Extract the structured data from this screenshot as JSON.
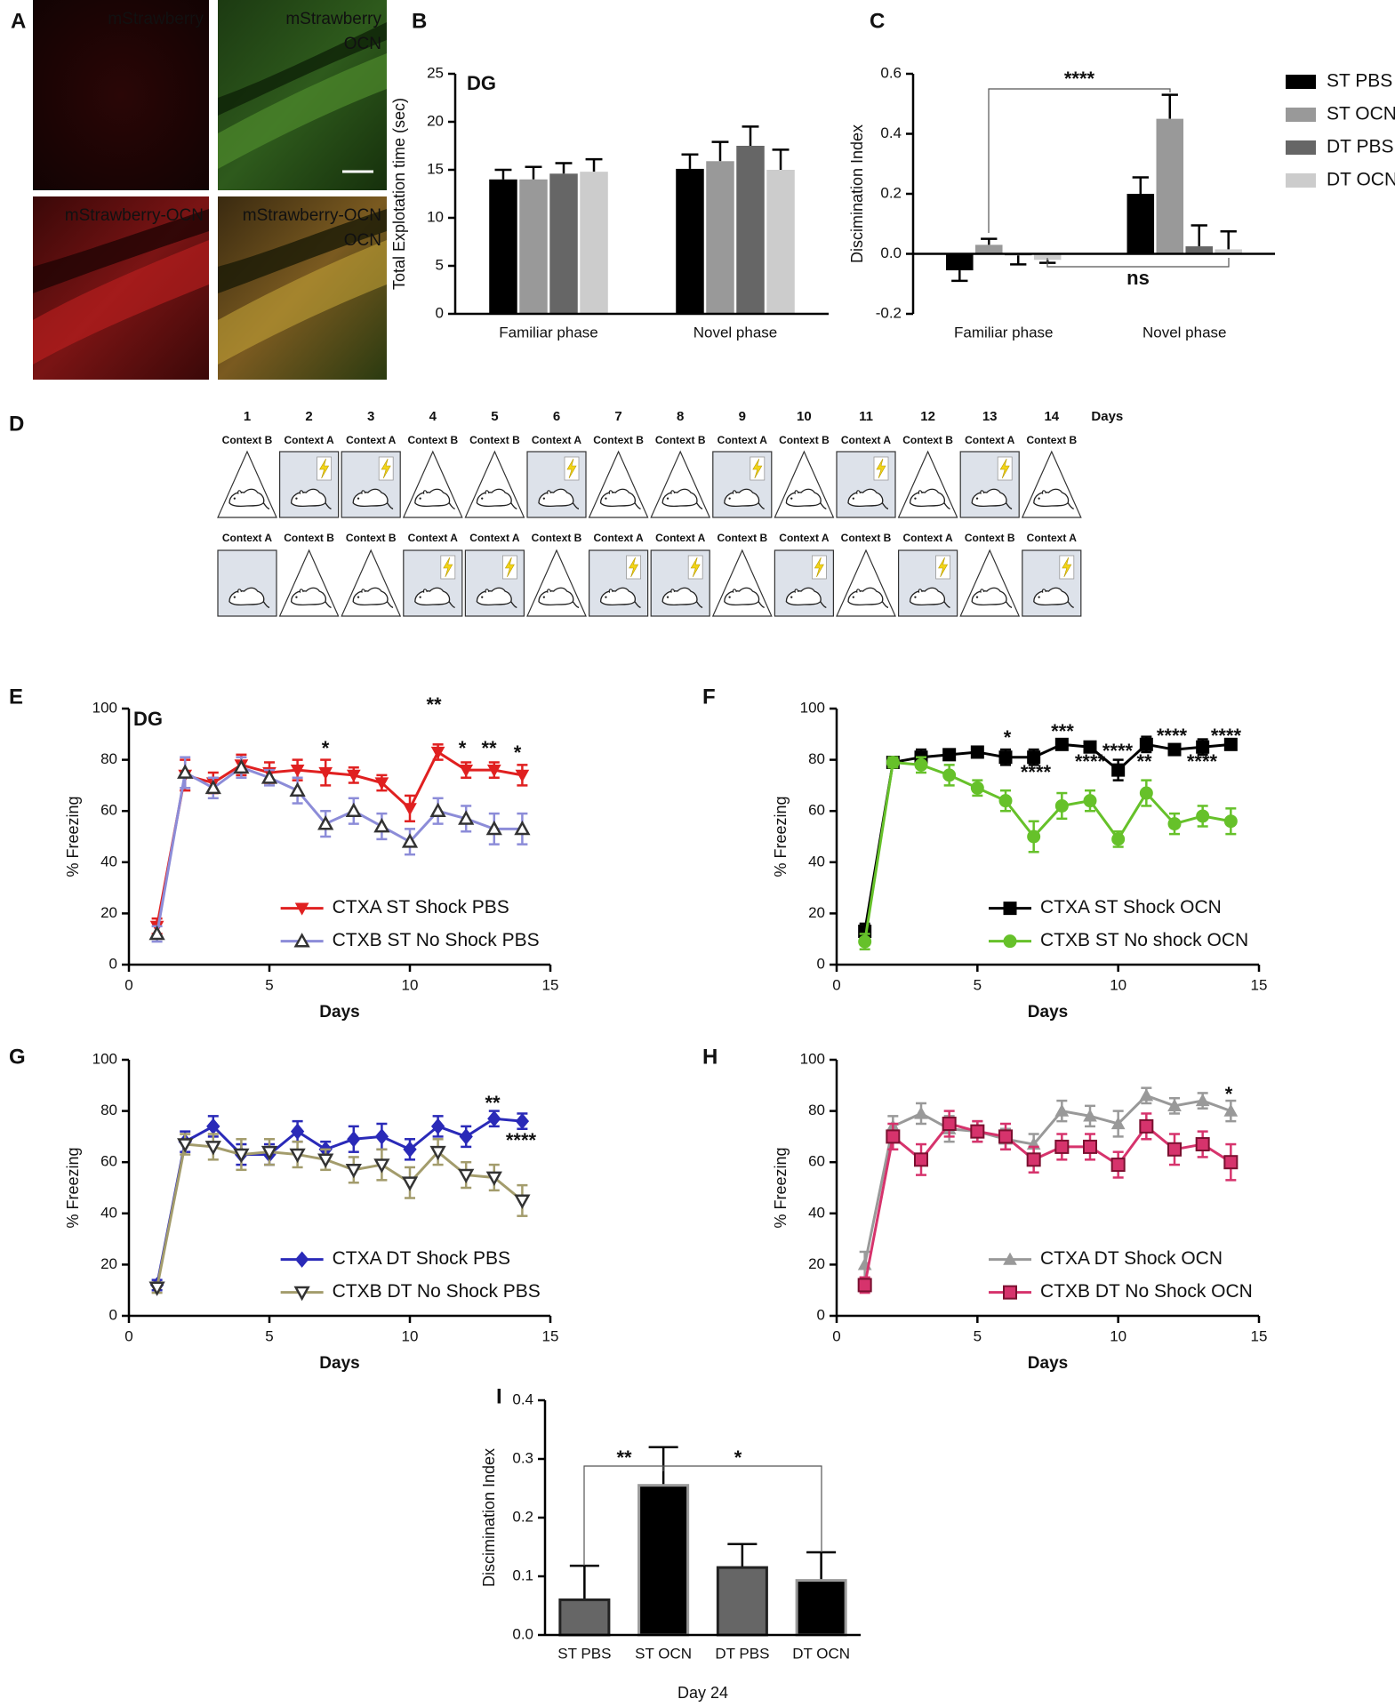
{
  "panel_labels": [
    "A",
    "B",
    "C",
    "D",
    "E",
    "F",
    "G",
    "H",
    "I"
  ],
  "images": [
    {
      "texts": [
        "mStrawberry"
      ]
    },
    {
      "texts": [
        "mStrawberry",
        "OCN"
      ]
    },
    {
      "texts": [
        "mStrawberry-OCN"
      ]
    },
    {
      "texts": [
        "mStrawberry-OCN",
        "OCN"
      ]
    }
  ],
  "protocol": {
    "days": [
      1,
      2,
      3,
      4,
      5,
      6,
      7,
      8,
      9,
      10,
      11,
      12,
      13,
      14
    ],
    "days_label": "Days",
    "rows": [
      [
        {
          "context": "Context B",
          "shock": false
        },
        {
          "context": "Context A",
          "shock": true
        },
        {
          "context": "Context A",
          "shock": true
        },
        {
          "context": "Context B",
          "shock": false
        },
        {
          "context": "Context B",
          "shock": false
        },
        {
          "context": "Context A",
          "shock": true
        },
        {
          "context": "Context B",
          "shock": false
        },
        {
          "context": "Context B",
          "shock": false
        },
        {
          "context": "Context A",
          "shock": true
        },
        {
          "context": "Context B",
          "shock": false
        },
        {
          "context": "Context A",
          "shock": true
        },
        {
          "context": "Context B",
          "shock": false
        },
        {
          "context": "Context A",
          "shock": true
        },
        {
          "context": "Context B",
          "shock": false
        }
      ],
      [
        {
          "context": "Context A",
          "shock": false
        },
        {
          "context": "Context B",
          "shock": false
        },
        {
          "context": "Context B",
          "shock": false
        },
        {
          "context": "Context A",
          "shock": true
        },
        {
          "context": "Context A",
          "shock": true
        },
        {
          "context": "Context B",
          "shock": false
        },
        {
          "context": "Context A",
          "shock": true
        },
        {
          "context": "Context A",
          "shock": true
        },
        {
          "context": "Context B",
          "shock": false
        },
        {
          "context": "Context A",
          "shock": true
        },
        {
          "context": "Context B",
          "shock": false
        },
        {
          "context": "Context A",
          "shock": true
        },
        {
          "context": "Context B",
          "shock": false
        },
        {
          "context": "Context A",
          "shock": true
        }
      ]
    ]
  },
  "chart_data": [
    {
      "type": "bar",
      "annotations": [
        "DG"
      ],
      "ylabel": "Total Explotation time (sec)",
      "categories": [
        "Familiar phase",
        "Novel phase"
      ],
      "series": [
        {
          "color": "#000000",
          "values": [
            14,
            15.1
          ],
          "error": [
            1,
            1.5
          ]
        },
        {
          "color": "#999999",
          "values": [
            14,
            15.9
          ],
          "error": [
            1.3,
            2
          ]
        },
        {
          "color": "#666666",
          "values": [
            14.6,
            17.5
          ],
          "error": [
            1.1,
            2
          ]
        },
        {
          "color": "#cccccc",
          "values": [
            14.8,
            15
          ],
          "error": [
            1.3,
            2.1
          ]
        }
      ],
      "ylim": [
        0,
        25
      ],
      "yticks": [
        0,
        5,
        10,
        15,
        20,
        25
      ]
    },
    {
      "type": "bar",
      "annotations": [
        "****",
        "ns"
      ],
      "ylabel": "Discimination Index",
      "categories": [
        "Familiar phase",
        "Novel phase"
      ],
      "series": [
        {
          "name": "ST PBS",
          "color": "#000000",
          "values": [
            -0.055,
            0.2
          ],
          "error": [
            0.035,
            0.055
          ]
        },
        {
          "name": "ST OCN",
          "color": "#999999",
          "values": [
            0.03,
            0.45
          ],
          "error": [
            0.02,
            0.08
          ]
        },
        {
          "name": "DT PBS",
          "color": "#666666",
          "values": [
            -0.005,
            0.025
          ],
          "error": [
            0.03,
            0.07
          ]
        },
        {
          "name": "DT OCN",
          "color": "#cccccc",
          "values": [
            -0.02,
            0.015
          ],
          "error": [
            0.01,
            0.06
          ]
        }
      ],
      "ylim": [
        -0.2,
        0.6
      ],
      "yticks": [
        -0.2,
        {
          "value": 0,
          "label": "0.0"
        },
        0.2,
        0.4,
        0.6
      ],
      "legend": "right"
    },
    {
      "type": "line",
      "annotations": [
        "DG",
        "*",
        "**",
        "*",
        "**",
        "*"
      ],
      "xlabel": "Days",
      "ylabel": "% Freezing",
      "x": [
        1,
        2,
        3,
        4,
        5,
        6,
        7,
        8,
        9,
        10,
        11,
        12,
        13,
        14
      ],
      "series": [
        {
          "name": "CTXA ST Shock PBS",
          "color": "#e02020",
          "marker": "triangle-down",
          "values": [
            15,
            74,
            71,
            78,
            75,
            76,
            75,
            74,
            71,
            61,
            83,
            76,
            76,
            74
          ],
          "error": [
            3,
            6,
            4,
            4,
            4,
            4,
            5,
            3,
            3,
            5,
            3,
            3,
            3,
            4
          ]
        },
        {
          "name": "CTXB ST No Shock PBS",
          "color": "#8c8cd8",
          "marker": "triangle-up-open",
          "marker_edgecolor": "#333333",
          "values": [
            12,
            75,
            69,
            77,
            73,
            68,
            55,
            60,
            54,
            48,
            60,
            57,
            53,
            53
          ],
          "error": [
            3,
            6,
            4,
            4,
            3,
            5,
            5,
            5,
            5,
            5,
            5,
            5,
            6,
            6
          ]
        }
      ],
      "xlim": [
        0,
        15
      ],
      "xticks": [
        0,
        5,
        10,
        15
      ],
      "ylim": [
        0,
        100
      ],
      "yticks": [
        0,
        20,
        40,
        60,
        80,
        100
      ],
      "legend": "lower right"
    },
    {
      "type": "line",
      "annotations": [
        "*",
        "****",
        "***",
        "****",
        "****",
        "**",
        "****",
        "****",
        "****"
      ],
      "xlabel": "Days",
      "ylabel": "% Freezing",
      "x": [
        1,
        2,
        3,
        4,
        5,
        6,
        7,
        8,
        9,
        10,
        11,
        12,
        13,
        14
      ],
      "series": [
        {
          "name": "CTXA ST Shock OCN",
          "color": "#000000",
          "marker": "square",
          "values": [
            13,
            79,
            81,
            82,
            83,
            81,
            81,
            86,
            85,
            76,
            86,
            84,
            85,
            86
          ],
          "error": [
            3,
            2,
            3,
            2,
            2,
            3,
            3,
            2,
            2,
            4,
            3,
            2,
            3,
            2
          ]
        },
        {
          "name": "CTXB ST No shock OCN",
          "color": "#66c12a",
          "marker": "circle",
          "values": [
            9,
            79,
            78,
            74,
            69,
            64,
            50,
            62,
            64,
            49,
            67,
            55,
            58,
            56
          ],
          "error": [
            3,
            2,
            3,
            4,
            3,
            4,
            6,
            5,
            4,
            3,
            5,
            4,
            4,
            5
          ]
        }
      ],
      "xlim": [
        0,
        15
      ],
      "xticks": [
        0,
        5,
        10,
        15
      ],
      "ylim": [
        0,
        100
      ],
      "yticks": [
        0,
        20,
        40,
        60,
        80,
        100
      ],
      "legend": "lower right"
    },
    {
      "type": "line",
      "annotations": [
        "**",
        "****"
      ],
      "xlabel": "Days",
      "ylabel": "% Freezing",
      "x": [
        1,
        2,
        3,
        4,
        5,
        6,
        7,
        8,
        9,
        10,
        11,
        12,
        13,
        14
      ],
      "series": [
        {
          "name": "CTXA DT Shock PBS",
          "color": "#2a2ab8",
          "marker": "diamond",
          "values": [
            12,
            68,
            74,
            63,
            63,
            72,
            65,
            69,
            70,
            65,
            74,
            70,
            77,
            76
          ],
          "error": [
            2,
            4,
            4,
            4,
            4,
            4,
            3,
            5,
            5,
            4,
            4,
            4,
            3,
            3
          ]
        },
        {
          "name": "CTXB DT No Shock PBS",
          "color": "#a39c6c",
          "marker": "triangle-down-open",
          "marker_edgecolor": "#333333",
          "values": [
            11,
            67,
            66,
            63,
            64,
            63,
            61,
            57,
            59,
            52,
            64,
            55,
            54,
            45
          ],
          "error": [
            2,
            4,
            5,
            6,
            5,
            5,
            4,
            5,
            6,
            6,
            5,
            5,
            5,
            6
          ]
        }
      ],
      "xlim": [
        0,
        15
      ],
      "xticks": [
        0,
        5,
        10,
        15
      ],
      "ylim": [
        0,
        100
      ],
      "yticks": [
        0,
        20,
        40,
        60,
        80,
        100
      ],
      "legend": "lower right"
    },
    {
      "type": "line",
      "annotations": [
        "*"
      ],
      "xlabel": "Days",
      "ylabel": "% Freezing",
      "x": [
        1,
        2,
        3,
        4,
        5,
        6,
        7,
        8,
        9,
        10,
        11,
        12,
        13,
        14
      ],
      "series": [
        {
          "name": "CTXA DT Shock OCN",
          "color": "#999999",
          "marker": "triangle-up",
          "values": [
            20,
            74,
            79,
            73,
            72,
            69,
            67,
            80,
            78,
            75,
            86,
            82,
            84,
            80
          ],
          "error": [
            5,
            4,
            4,
            5,
            4,
            4,
            4,
            4,
            4,
            5,
            3,
            3,
            3,
            4
          ]
        },
        {
          "name": "CTXB DT No Shock OCN",
          "color": "#d6336c",
          "marker": "square",
          "marker_edgecolor": "#7a1030",
          "values": [
            12,
            70,
            61,
            75,
            72,
            70,
            61,
            66,
            66,
            59,
            74,
            65,
            67,
            60
          ],
          "error": [
            3,
            5,
            6,
            5,
            4,
            5,
            5,
            5,
            5,
            5,
            5,
            6,
            5,
            7
          ]
        }
      ],
      "xlim": [
        0,
        15
      ],
      "xticks": [
        0,
        5,
        10,
        15
      ],
      "ylim": [
        0,
        100
      ],
      "yticks": [
        0,
        20,
        40,
        60,
        80,
        100
      ],
      "legend": "lower right"
    },
    {
      "type": "bar",
      "annotations": [
        "**",
        "*"
      ],
      "ylabel": "Discimination Index",
      "xlabel": "Day 24",
      "categories": [
        "ST PBS",
        "ST OCN",
        "DT PBS",
        "DT OCN"
      ],
      "values": [
        0.06,
        0.255,
        0.115,
        0.093
      ],
      "error": [
        0.058,
        0.065,
        0.04,
        0.048
      ],
      "colors": [
        "#666666",
        "#000000",
        "#666666",
        "#000000"
      ],
      "edgecolors": [
        "#222222",
        "#999999",
        "#222222",
        "#999999"
      ],
      "ylim": [
        0,
        0.4
      ],
      "yticks": [
        {
          "value": 0,
          "label": "0.0"
        },
        0.1,
        0.2,
        0.3,
        0.4
      ]
    }
  ]
}
